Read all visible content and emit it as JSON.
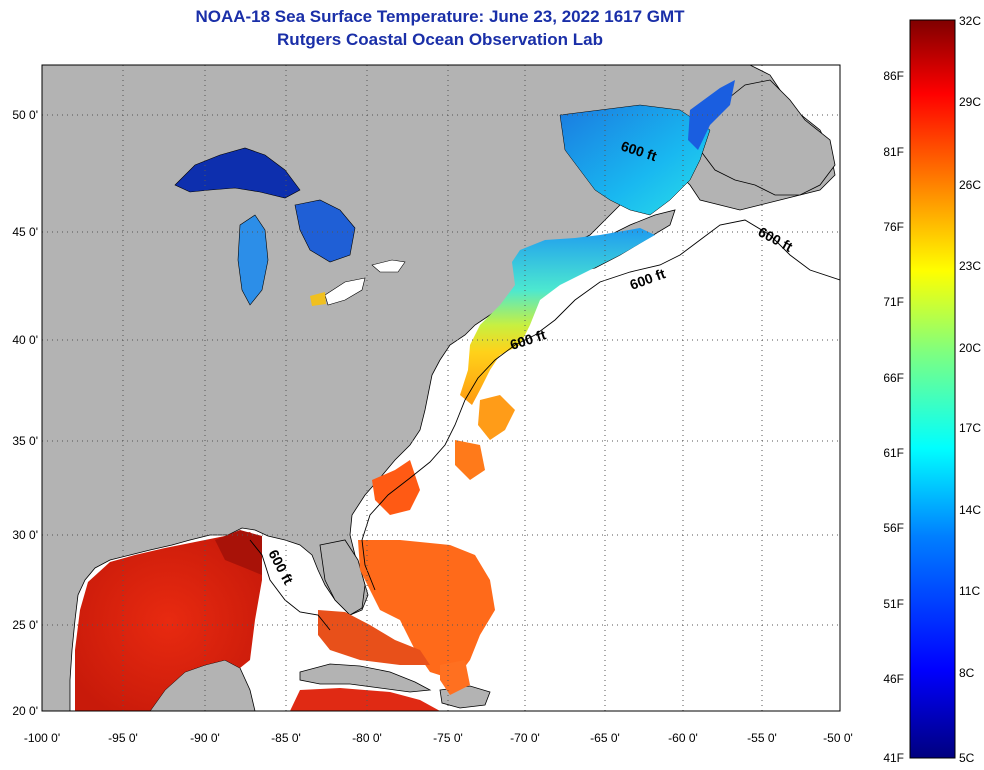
{
  "title": "NOAA-18 Sea Surface Temperature:  June 23, 2022 1617 GMT",
  "subtitle": "Rutgers Coastal Ocean Observation Lab",
  "longitude_labels": [
    "-100 0'",
    "-95 0'",
    "-90 0'",
    "-85 0'",
    "-80 0'",
    "-75 0'",
    "-70 0'",
    "-65 0'",
    "-60 0'",
    "-55 0'",
    "-50 0'"
  ],
  "latitude_labels": [
    "50 0'",
    "45 0'",
    "40 0'",
    "35 0'",
    "30 0'",
    "25 0'",
    "20 0'"
  ],
  "contour_labels": [
    "600 ft",
    "600 ft",
    "600 ft",
    "600 ft",
    "600 ft"
  ],
  "colorbar": {
    "fahrenheit": [
      "86F",
      "81F",
      "76F",
      "71F",
      "66F",
      "61F",
      "56F",
      "51F",
      "46F",
      "41F"
    ],
    "celsius": [
      "32C",
      "29C",
      "26C",
      "23C",
      "20C",
      "17C",
      "14C",
      "11C",
      "8C",
      "5C"
    ],
    "colors": [
      "#00007f",
      "#0000ff",
      "#007fff",
      "#00ffff",
      "#7fff7f",
      "#ffff00",
      "#ff7f00",
      "#ff0000",
      "#7f0000"
    ]
  },
  "colors": {
    "land": "#b3b3b3",
    "ocean_nodata": "#ffffff",
    "title": "#1a2fa8"
  }
}
